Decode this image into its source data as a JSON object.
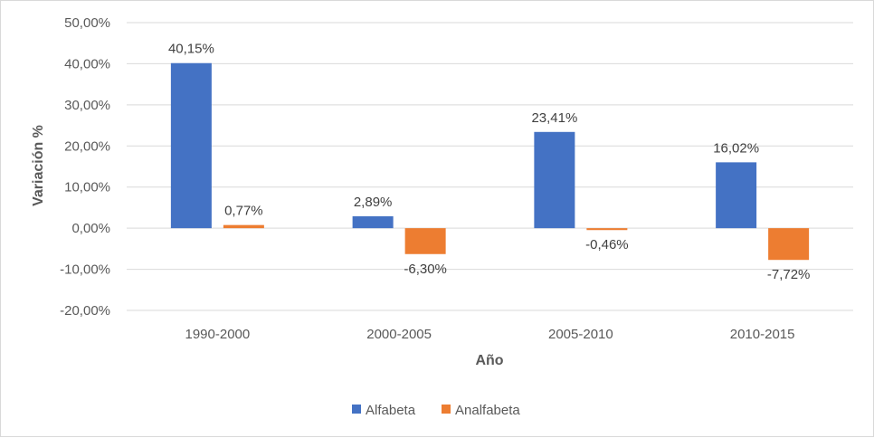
{
  "chart_data": {
    "type": "bar",
    "title": "",
    "xlabel": "Año",
    "ylabel": "Variación %",
    "categories": [
      "1990-2000",
      "2000-2005",
      "2005-2010",
      "2010-2015"
    ],
    "series": [
      {
        "name": "Alfabeta",
        "values": [
          40.15,
          2.89,
          23.41,
          16.02
        ],
        "labels": [
          "40,15%",
          "2,89%",
          "23,41%",
          "16,02%"
        ],
        "color": "#4472c4"
      },
      {
        "name": "Analfabeta",
        "values": [
          0.77,
          -6.3,
          -0.46,
          -7.72
        ],
        "labels": [
          "0,77%",
          "-6,30%",
          "-0,46%",
          "-7,72%"
        ],
        "color": "#ed7d31"
      }
    ],
    "ylim": [
      -20,
      50
    ],
    "yticks": [
      50,
      40,
      30,
      20,
      10,
      0,
      -10,
      -20
    ],
    "ytick_labels": [
      "50,00%",
      "40,00%",
      "30,00%",
      "20,00%",
      "10,00%",
      "0,00%",
      "-10,00%",
      "-20,00%"
    ],
    "grid": true,
    "legend_position": "bottom",
    "colors": {
      "gridline": "#d9d9d9",
      "text": "#595959"
    }
  }
}
